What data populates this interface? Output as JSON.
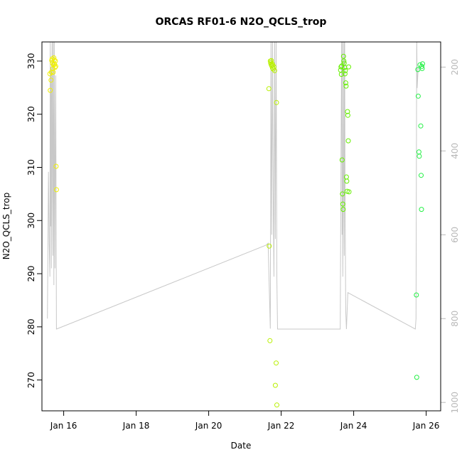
{
  "chart_data": {
    "type": "scatter",
    "title": "ORCAS RF01-6 N2O_QCLS_trop",
    "xlabel": "Date",
    "ylabel": "N2O_QCLS_trop",
    "x_ticks": [
      {
        "label": "Jan 16",
        "day": 16
      },
      {
        "label": "Jan 18",
        "day": 18
      },
      {
        "label": "Jan 20",
        "day": 20
      },
      {
        "label": "Jan 22",
        "day": 22
      },
      {
        "label": "Jan 24",
        "day": 24
      },
      {
        "label": "Jan 26",
        "day": 26
      }
    ],
    "xlim": [
      15.4,
      26.4
    ],
    "ylim": [
      264.2,
      333.6
    ],
    "y_ticks": [
      270,
      280,
      290,
      300,
      310,
      320,
      330
    ],
    "y2lim": [
      1020,
      140
    ],
    "y2_ticks": [
      200,
      400,
      600,
      800,
      1000
    ],
    "y2_color": "#b8b8b8",
    "series": [
      {
        "color": "#f0f000",
        "points": [
          [
            15.62,
            327.6
          ],
          [
            15.63,
            324.5
          ],
          [
            15.65,
            326.4
          ],
          [
            15.66,
            327.9
          ],
          [
            15.67,
            330.1
          ],
          [
            15.68,
            330.4
          ],
          [
            15.69,
            329.6
          ],
          [
            15.7,
            328.6
          ],
          [
            15.71,
            327.9
          ],
          [
            15.72,
            329.3
          ],
          [
            15.73,
            330.6
          ],
          [
            15.74,
            330.2
          ],
          [
            15.75,
            329.4
          ],
          [
            15.76,
            328.8
          ],
          [
            15.77,
            330.0
          ],
          [
            15.78,
            329.0
          ],
          [
            15.79,
            310.2
          ],
          [
            15.8,
            305.8
          ]
        ]
      },
      {
        "color": "#b8f000",
        "points": [
          [
            21.66,
            324.8
          ],
          [
            21.67,
            295.2
          ],
          [
            21.69,
            277.4
          ],
          [
            21.7,
            330.0
          ],
          [
            21.71,
            329.7
          ],
          [
            21.72,
            329.4
          ],
          [
            21.73,
            330.1
          ],
          [
            21.74,
            329.1
          ],
          [
            21.75,
            329.5
          ],
          [
            21.76,
            328.7
          ],
          [
            21.77,
            329.2
          ],
          [
            21.78,
            328.5
          ],
          [
            21.8,
            328.9
          ],
          [
            21.82,
            328.2
          ],
          [
            21.84,
            269.0
          ],
          [
            21.86,
            273.2
          ],
          [
            21.87,
            322.2
          ],
          [
            21.88,
            265.3
          ]
        ]
      },
      {
        "color": "#66f000",
        "points": [
          [
            23.64,
            328.3
          ],
          [
            23.65,
            328.9
          ],
          [
            23.66,
            327.5
          ],
          [
            23.67,
            329.1
          ],
          [
            23.68,
            311.4
          ],
          [
            23.69,
            305.0
          ],
          [
            23.7,
            303.1
          ],
          [
            23.71,
            302.1
          ],
          [
            23.72,
            330.9
          ],
          [
            23.73,
            330.0
          ],
          [
            23.74,
            329.6
          ],
          [
            23.75,
            328.8
          ],
          [
            23.76,
            327.6
          ],
          [
            23.77,
            328.2
          ],
          [
            23.78,
            325.9
          ],
          [
            23.79,
            325.3
          ],
          [
            23.8,
            308.2
          ],
          [
            23.81,
            307.4
          ],
          [
            23.82,
            305.5
          ],
          [
            23.83,
            320.5
          ],
          [
            23.84,
            319.8
          ],
          [
            23.85,
            315.0
          ],
          [
            23.86,
            328.9
          ],
          [
            23.87,
            305.4
          ]
        ]
      },
      {
        "color": "#22f044",
        "points": [
          [
            25.73,
            286.0
          ],
          [
            25.74,
            270.5
          ],
          [
            25.77,
            328.4
          ],
          [
            25.78,
            323.4
          ],
          [
            25.8,
            312.9
          ],
          [
            25.81,
            312.1
          ],
          [
            25.83,
            329.3
          ],
          [
            25.85,
            317.8
          ],
          [
            25.86,
            308.5
          ],
          [
            25.87,
            302.1
          ],
          [
            25.88,
            329.0
          ],
          [
            25.89,
            328.6
          ],
          [
            25.9,
            329.5
          ]
        ]
      }
    ],
    "altitude_line": {
      "color": "#c8c8c8",
      "points": [
        [
          15.55,
          800
        ],
        [
          15.58,
          450
        ],
        [
          15.6,
          620
        ],
        [
          15.62,
          700
        ],
        [
          15.63,
          120
        ],
        [
          15.64,
          580
        ],
        [
          15.65,
          200
        ],
        [
          15.66,
          680
        ],
        [
          15.67,
          300
        ],
        [
          15.68,
          120
        ],
        [
          15.69,
          500
        ],
        [
          15.7,
          650
        ],
        [
          15.71,
          120
        ],
        [
          15.72,
          420
        ],
        [
          15.73,
          720
        ],
        [
          15.74,
          120
        ],
        [
          15.75,
          380
        ],
        [
          15.76,
          680
        ],
        [
          15.77,
          400
        ],
        [
          15.78,
          220
        ],
        [
          15.8,
          825
        ],
        [
          21.58,
          625
        ],
        [
          21.64,
          620
        ],
        [
          21.7,
          824
        ],
        [
          21.72,
          120
        ],
        [
          21.74,
          600
        ],
        [
          21.76,
          120
        ],
        [
          21.78,
          500
        ],
        [
          21.8,
          700
        ],
        [
          21.82,
          120
        ],
        [
          21.84,
          610
        ],
        [
          21.86,
          120
        ],
        [
          21.88,
          700
        ],
        [
          21.9,
          825
        ],
        [
          23.63,
          825
        ],
        [
          23.65,
          400
        ],
        [
          23.67,
          120
        ],
        [
          23.68,
          600
        ],
        [
          23.69,
          120
        ],
        [
          23.7,
          700
        ],
        [
          23.72,
          400
        ],
        [
          23.73,
          120
        ],
        [
          23.74,
          650
        ],
        [
          23.75,
          120
        ],
        [
          23.76,
          480
        ],
        [
          23.78,
          780
        ],
        [
          23.8,
          825
        ],
        [
          23.84,
          738
        ],
        [
          25.7,
          825
        ],
        [
          25.72,
          800
        ],
        [
          25.74,
          120
        ],
        [
          25.75,
          250
        ],
        [
          25.78,
          200
        ]
      ]
    }
  }
}
